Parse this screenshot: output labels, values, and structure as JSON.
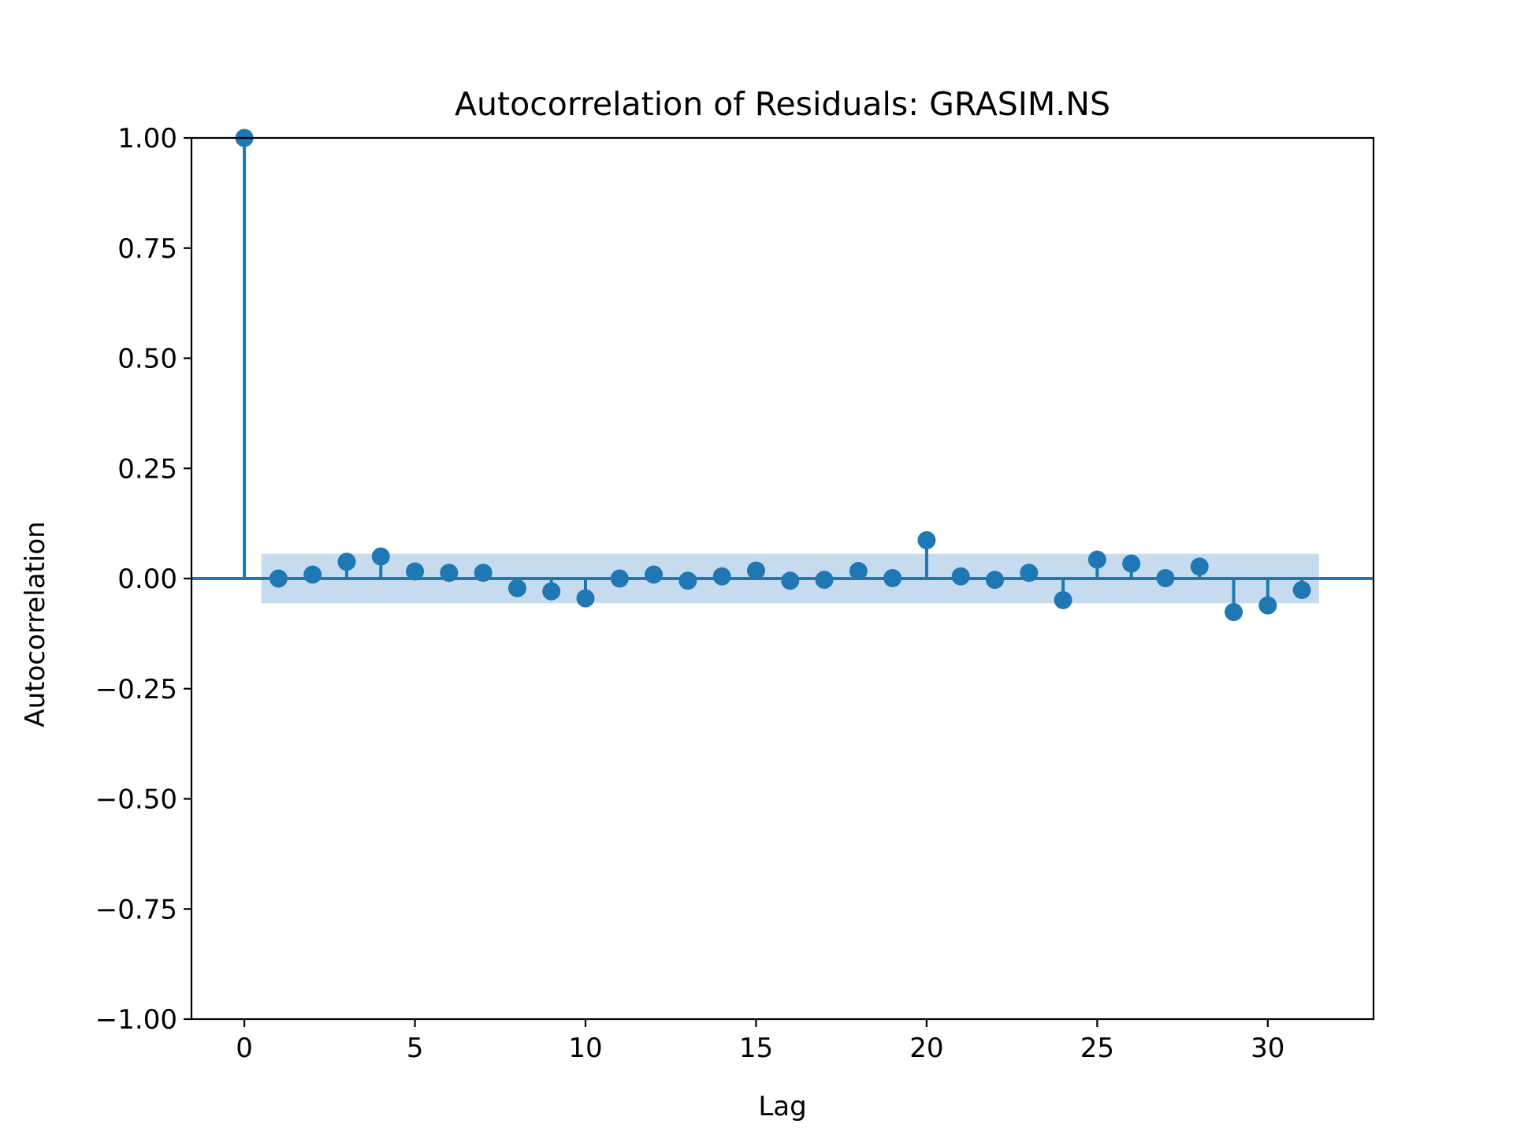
{
  "chart_data": {
    "type": "stem",
    "title": "Autocorrelation of Residuals: GRASIM.NS",
    "xlabel": "Lag",
    "ylabel": "Autocorrelation",
    "xlim": [
      -1.55,
      33.1
    ],
    "ylim": [
      -1.0,
      1.0
    ],
    "xticks": [
      0,
      5,
      10,
      15,
      20,
      25,
      30
    ],
    "xtick_labels": [
      "0",
      "5",
      "10",
      "15",
      "20",
      "25",
      "30"
    ],
    "yticks": [
      1.0,
      0.75,
      0.5,
      0.25,
      0.0,
      -0.25,
      -0.5,
      -0.75,
      -1.0
    ],
    "ytick_labels": [
      "1.00",
      "0.75",
      "0.50",
      "0.25",
      "0.00",
      "−0.25",
      "−0.50",
      "−0.75",
      "−1.00"
    ],
    "grid": false,
    "lags": [
      0,
      1,
      2,
      3,
      4,
      5,
      6,
      7,
      8,
      9,
      10,
      11,
      12,
      13,
      14,
      15,
      16,
      17,
      18,
      19,
      20,
      21,
      22,
      23,
      24,
      25,
      26,
      27,
      28,
      29,
      30,
      31
    ],
    "values": [
      1.0,
      0.0,
      0.009,
      0.038,
      0.05,
      0.016,
      0.013,
      0.013,
      -0.022,
      -0.029,
      -0.045,
      0.0,
      0.009,
      -0.005,
      0.005,
      0.018,
      -0.005,
      -0.003,
      0.017,
      0.001,
      0.087,
      0.005,
      -0.003,
      0.013,
      -0.049,
      0.043,
      0.034,
      0.001,
      0.027,
      -0.076,
      -0.061,
      -0.026
    ],
    "confidence_band": {
      "lag_start": 0.5,
      "lag_end": 31.5,
      "upper": 0.056,
      "lower": -0.056
    },
    "colors": {
      "series": "#1f77b4",
      "band": "#c6dbee",
      "axes": "#000000"
    }
  }
}
